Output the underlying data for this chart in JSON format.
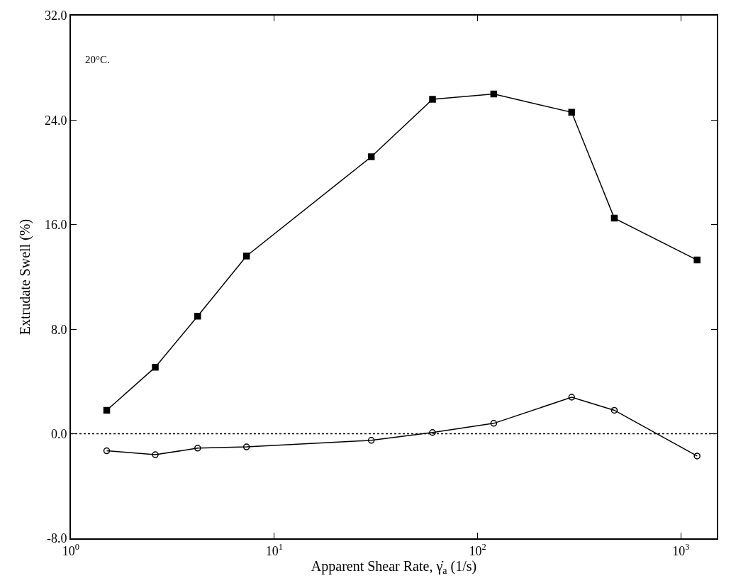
{
  "chart_data": {
    "type": "line",
    "xlabel": "Apparent Shear Rate, γ̇$_{a}$ (1/s)",
    "ylabel": "Extrudate Swell (%)",
    "log": "x",
    "xlim": [
      1,
      1500
    ],
    "xticks": [
      {
        "value": 1,
        "label": "10$^{0}$"
      },
      {
        "value": 10,
        "label": "10$^{1}$"
      },
      {
        "value": 100,
        "label": "10$^{2}$"
      },
      {
        "value": 1000,
        "label": "10$^{3}$"
      }
    ],
    "ylim": [
      -8,
      32
    ],
    "yticks": [
      {
        "value": -8,
        "label": "-8.0"
      },
      {
        "value": 0,
        "label": "0.0"
      },
      {
        "value": 8,
        "label": "8.0"
      },
      {
        "value": 16,
        "label": "16.0"
      },
      {
        "value": 24,
        "label": "24.0"
      },
      {
        "value": 32,
        "label": "32.0"
      }
    ],
    "x": [
      1.5,
      2.6,
      4.2,
      7.3,
      30,
      60,
      120,
      290,
      470,
      1200
    ],
    "series": [
      {
        "color": "#000000",
        "marker": "square",
        "values": [
          1.8,
          5.1,
          9.0,
          13.6,
          21.2,
          25.6,
          26.0,
          24.6,
          16.5,
          13.3
        ]
      },
      {
        "color": "#000000",
        "marker": "circle",
        "values": [
          -1.3,
          -1.6,
          -1.1,
          -1.0,
          -0.5,
          0.1,
          0.8,
          2.8,
          1.8,
          -1.7
        ]
      }
    ],
    "ref_lines": [
      {
        "axis": "y",
        "value": 0,
        "color": "#000000",
        "line_style": "dotted"
      }
    ],
    "annotations": [
      "20°C."
    ]
  }
}
